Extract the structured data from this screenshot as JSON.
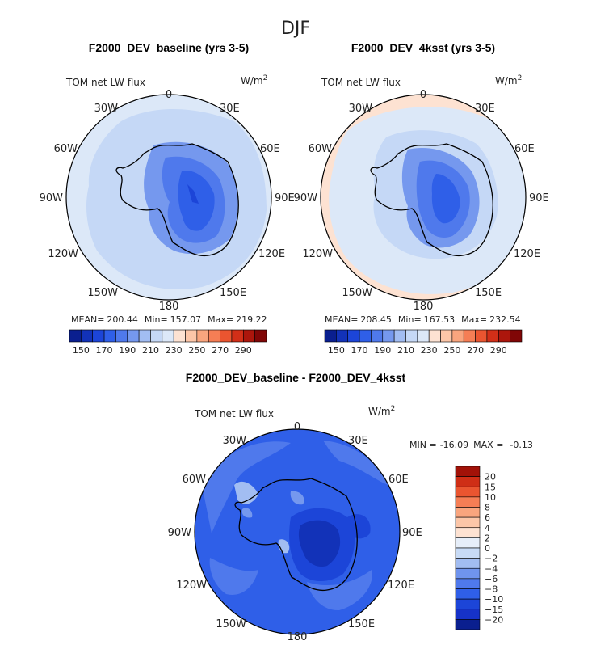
{
  "figure": {
    "season_title": "DJF"
  },
  "units_label": "W/m",
  "units_exp": "2",
  "variable_label": "TOM net LW flux",
  "longitude_labels": [
    "0",
    "30E",
    "60E",
    "90E",
    "120E",
    "150E",
    "180",
    "150W",
    "120W",
    "90W",
    "60W",
    "30W"
  ],
  "colors": {
    "abs_palette": [
      "#0a1f8f",
      "#1232b8",
      "#1c45d8",
      "#2f5fe8",
      "#4f79ec",
      "#7598ee",
      "#a2bdf2",
      "#c5d8f6",
      "#dce8f8",
      "#fde2d2",
      "#fcc6a8",
      "#f9a57e",
      "#f57e55",
      "#ea5530",
      "#d22f18",
      "#ac160c",
      "#800606"
    ],
    "diff_palette": [
      "#0a1f8f",
      "#1632c8",
      "#1c45d8",
      "#2f5fe8",
      "#4f79ec",
      "#6f94ee",
      "#a2bdf2",
      "#c8dbf6",
      "#e6eef9",
      "#fde2d2",
      "#fcc6a8",
      "#f9a57e",
      "#f57e55",
      "#ea5530",
      "#cf2e16",
      "#a21208"
    ]
  },
  "chart_data": [
    {
      "type": "heatmap",
      "projection": "south-polar-stereographic",
      "title": "F2000_DEV_baseline (yrs 3-5)",
      "variable": "TOM net LW flux",
      "units": "W/m^2",
      "stats": {
        "mean_label": "MEAN=",
        "mean": "200.44",
        "min_label": "Min=",
        "min": "157.07",
        "max_label": "Max=",
        "max": "219.22"
      },
      "colorbar_ticks": [
        "150",
        "170",
        "190",
        "210",
        "230",
        "250",
        "270",
        "290"
      ]
    },
    {
      "type": "heatmap",
      "projection": "south-polar-stereographic",
      "title": "F2000_DEV_4ksst (yrs 3-5)",
      "variable": "TOM net LW flux",
      "units": "W/m^2",
      "stats": {
        "mean_label": "MEAN=",
        "mean": "208.45",
        "min_label": "Min=",
        "min": "167.53",
        "max_label": "Max=",
        "max": "232.54"
      },
      "colorbar_ticks": [
        "150",
        "170",
        "190",
        "210",
        "230",
        "250",
        "270",
        "290"
      ]
    },
    {
      "type": "heatmap",
      "projection": "south-polar-stereographic",
      "title": "F2000_DEV_baseline - F2000_DEV_4ksst",
      "variable": "TOM net LW flux",
      "units": "W/m^2",
      "stats": {
        "min_label": "MIN =",
        "min": "-16.09",
        "max_label": "MAX =",
        "max": "-0.13"
      },
      "colorbar_ticks": [
        "20",
        "15",
        "10",
        "8",
        "6",
        "4",
        "2",
        "0",
        "−2",
        "−4",
        "−6",
        "−8",
        "−10",
        "−15",
        "−20"
      ]
    }
  ]
}
